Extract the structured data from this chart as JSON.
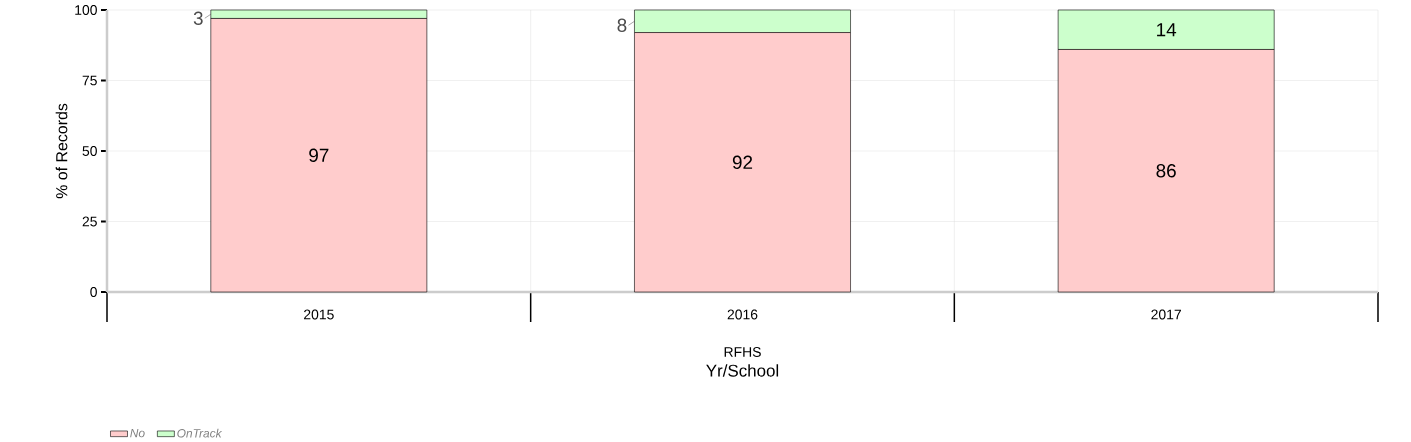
{
  "chart_data": {
    "type": "bar",
    "stacked": true,
    "categories": [
      "2015",
      "2016",
      "2017"
    ],
    "series": [
      {
        "name": "No",
        "color": "#ffcccc",
        "values": [
          97,
          92,
          86
        ]
      },
      {
        "name": "OnTrack",
        "color": "#ccffcc",
        "values": [
          3,
          8,
          14
        ]
      }
    ],
    "ylim": [
      0,
      100
    ],
    "yticks": [
      0,
      25,
      50,
      75,
      100
    ],
    "ylabel": "% of Records",
    "xlabel": "Yr/School",
    "annotations": [
      "RFHS"
    ],
    "grid": true,
    "legend": "bottom left",
    "data_labels": true
  }
}
